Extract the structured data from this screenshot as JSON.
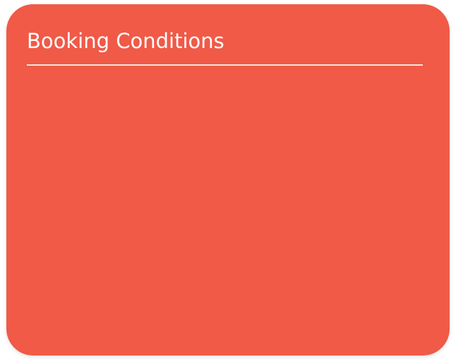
{
  "card": {
    "title": "Booking Conditions",
    "background_color": "#f05a47",
    "divider_color": "#f3e6e1"
  }
}
